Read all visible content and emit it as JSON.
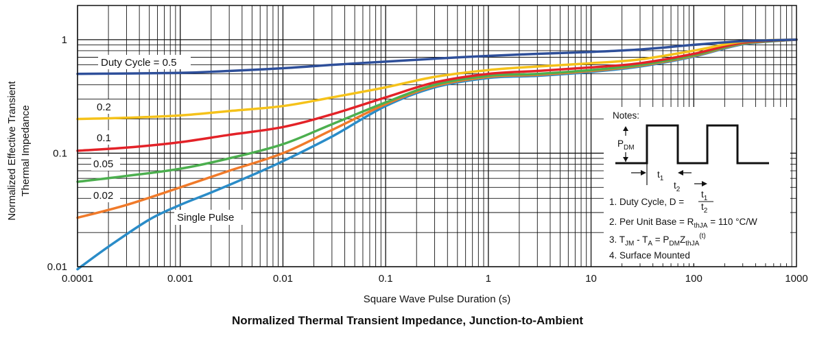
{
  "caption": "Normalized Thermal Transient Impedance, Junction-to-Ambient",
  "chart_data": {
    "type": "line",
    "title": "Normalized Thermal Transient Impedance, Junction-to-Ambient",
    "xlabel": "Square Wave Pulse Duration (s)",
    "ylabel_lines": [
      "Normalized Effective Transient",
      "Thermal Impedance"
    ],
    "x_scale": "log",
    "y_scale": "log",
    "xlim": [
      0.0001,
      1000
    ],
    "ylim": [
      0.01,
      2
    ],
    "grid": true,
    "x_ticks": [
      {
        "value": 0.0001,
        "label": "0.0001"
      },
      {
        "value": 0.001,
        "label": "0.001"
      },
      {
        "value": 0.01,
        "label": "0.01"
      },
      {
        "value": 0.1,
        "label": "0.1"
      },
      {
        "value": 1,
        "label": "1"
      },
      {
        "value": 10,
        "label": "10"
      },
      {
        "value": 100,
        "label": "100"
      },
      {
        "value": 1000,
        "label": "1000"
      }
    ],
    "y_ticks": [
      {
        "value": 0.01,
        "label": "0.01"
      },
      {
        "value": 0.1,
        "label": "0.1"
      },
      {
        "value": 1,
        "label": "1"
      }
    ],
    "series": [
      {
        "name": "Duty Cycle = 0.5",
        "color": "#2e4f9a",
        "points": [
          [
            0.0001,
            0.5
          ],
          [
            0.001,
            0.51
          ],
          [
            0.003,
            0.53
          ],
          [
            0.01,
            0.56
          ],
          [
            0.03,
            0.6
          ],
          [
            0.1,
            0.64
          ],
          [
            0.3,
            0.68
          ],
          [
            1,
            0.72
          ],
          [
            3,
            0.75
          ],
          [
            10,
            0.78
          ],
          [
            30,
            0.82
          ],
          [
            100,
            0.9
          ],
          [
            300,
            0.97
          ],
          [
            1000,
            1.0
          ]
        ]
      },
      {
        "name": "0.2",
        "color": "#f5c21a",
        "points": [
          [
            0.0001,
            0.2
          ],
          [
            0.0003,
            0.205
          ],
          [
            0.001,
            0.215
          ],
          [
            0.003,
            0.235
          ],
          [
            0.01,
            0.26
          ],
          [
            0.03,
            0.31
          ],
          [
            0.1,
            0.38
          ],
          [
            0.3,
            0.47
          ],
          [
            1,
            0.54
          ],
          [
            3,
            0.58
          ],
          [
            10,
            0.62
          ],
          [
            30,
            0.67
          ],
          [
            100,
            0.8
          ],
          [
            300,
            0.96
          ],
          [
            1000,
            1.0
          ]
        ]
      },
      {
        "name": "0.1",
        "color": "#e32228",
        "points": [
          [
            0.0001,
            0.105
          ],
          [
            0.0003,
            0.112
          ],
          [
            0.001,
            0.125
          ],
          [
            0.003,
            0.145
          ],
          [
            0.01,
            0.17
          ],
          [
            0.03,
            0.22
          ],
          [
            0.1,
            0.31
          ],
          [
            0.3,
            0.42
          ],
          [
            1,
            0.5
          ],
          [
            3,
            0.53
          ],
          [
            10,
            0.57
          ],
          [
            30,
            0.62
          ],
          [
            100,
            0.75
          ],
          [
            300,
            0.94
          ],
          [
            1000,
            1.0
          ]
        ]
      },
      {
        "name": "0.05",
        "color": "#4caf4f",
        "points": [
          [
            0.0001,
            0.056
          ],
          [
            0.0003,
            0.063
          ],
          [
            0.001,
            0.073
          ],
          [
            0.003,
            0.09
          ],
          [
            0.01,
            0.12
          ],
          [
            0.03,
            0.18
          ],
          [
            0.1,
            0.28
          ],
          [
            0.3,
            0.4
          ],
          [
            1,
            0.48
          ],
          [
            3,
            0.5
          ],
          [
            10,
            0.54
          ],
          [
            30,
            0.6
          ],
          [
            100,
            0.73
          ],
          [
            300,
            0.93
          ],
          [
            1000,
            1.0
          ]
        ]
      },
      {
        "name": "0.02",
        "color": "#f07a2a",
        "points": [
          [
            0.0001,
            0.027
          ],
          [
            0.0003,
            0.035
          ],
          [
            0.001,
            0.05
          ],
          [
            0.003,
            0.07
          ],
          [
            0.01,
            0.1
          ],
          [
            0.03,
            0.16
          ],
          [
            0.1,
            0.27
          ],
          [
            0.3,
            0.39
          ],
          [
            1,
            0.47
          ],
          [
            3,
            0.49
          ],
          [
            10,
            0.53
          ],
          [
            30,
            0.59
          ],
          [
            100,
            0.72
          ],
          [
            300,
            0.92
          ],
          [
            1000,
            1.0
          ]
        ]
      },
      {
        "name": "Single Pulse",
        "color": "#2a8cc8",
        "points": [
          [
            0.0001,
            0.0095
          ],
          [
            0.0002,
            0.015
          ],
          [
            0.0005,
            0.026
          ],
          [
            0.001,
            0.035
          ],
          [
            0.002,
            0.045
          ],
          [
            0.005,
            0.064
          ],
          [
            0.01,
            0.085
          ],
          [
            0.03,
            0.14
          ],
          [
            0.1,
            0.26
          ],
          [
            0.3,
            0.38
          ],
          [
            1,
            0.46
          ],
          [
            3,
            0.48
          ],
          [
            10,
            0.52
          ],
          [
            30,
            0.58
          ],
          [
            100,
            0.71
          ],
          [
            300,
            0.91
          ],
          [
            1000,
            1.0
          ]
        ]
      }
    ],
    "annotations": {
      "notes_title": "Notes:",
      "p_label": "P",
      "p_sub": "DM",
      "t1_label": "t",
      "t1_sub": "1",
      "t2_label": "t",
      "t2_sub": "2",
      "note1_text": "1. Duty Cycle, D =",
      "note1_num": "t",
      "note1_num_sub": "1",
      "note1_den": "t",
      "note1_den_sub": "2",
      "note2_a": "2. Per Unit Base = R",
      "note2_sub": "thJA",
      "note2_b": " = 110 °C/W",
      "note3_a": "3. T",
      "note3_sub1": "JM",
      "note3_b": " - T",
      "note3_sub2": "A",
      "note3_c": " = P",
      "note3_sub3": "DM",
      "note3_d": "Z",
      "note3_sub4": "thJA",
      "note3_sup": "(t)",
      "note4": "4. Surface Mounted"
    }
  }
}
